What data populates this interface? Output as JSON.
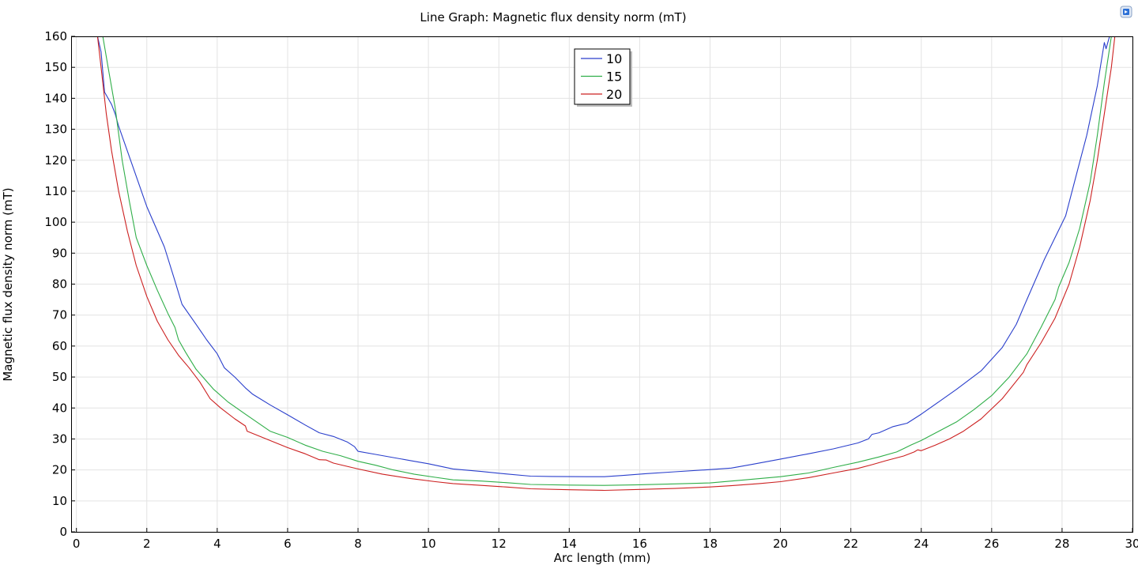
{
  "chart_data": {
    "type": "line",
    "title": "Line Graph: Magnetic flux density norm (mT)",
    "xlabel": "Arc length (mm)",
    "ylabel": "Magnetic flux density norm (mT)",
    "xlim": [
      -0.15,
      30.0
    ],
    "ylim": [
      0,
      160
    ],
    "xticks": [
      0,
      2,
      4,
      6,
      8,
      10,
      12,
      14,
      16,
      18,
      20,
      22,
      24,
      26,
      28,
      30
    ],
    "yticks": [
      0,
      10,
      20,
      30,
      40,
      50,
      60,
      70,
      80,
      90,
      100,
      110,
      120,
      130,
      140,
      150,
      160
    ],
    "grid": true,
    "legend_position": "top-center",
    "series": [
      {
        "name": "10",
        "color": "#2a3fcc",
        "points": [
          [
            0.6,
            160
          ],
          [
            0.7,
            155
          ],
          [
            0.8,
            142
          ],
          [
            1.0,
            138
          ],
          [
            1.1,
            135
          ],
          [
            1.2,
            131
          ],
          [
            1.6,
            118
          ],
          [
            2.0,
            105
          ],
          [
            2.5,
            92
          ],
          [
            2.8,
            81
          ],
          [
            3.0,
            73.5
          ],
          [
            3.4,
            67
          ],
          [
            3.7,
            62
          ],
          [
            4.0,
            57.5
          ],
          [
            4.2,
            53
          ],
          [
            4.5,
            50
          ],
          [
            4.8,
            46.5
          ],
          [
            5.0,
            44.5
          ],
          [
            5.5,
            41
          ],
          [
            6.0,
            37.8
          ],
          [
            6.5,
            34.5
          ],
          [
            6.9,
            32
          ],
          [
            7.3,
            30.8
          ],
          [
            7.7,
            29
          ],
          [
            7.9,
            27.5
          ],
          [
            8.0,
            26
          ],
          [
            8.5,
            25
          ],
          [
            9.0,
            24
          ],
          [
            9.5,
            23
          ],
          [
            10.0,
            22
          ],
          [
            10.7,
            20.3
          ],
          [
            11.5,
            19.5
          ],
          [
            12.2,
            18.7
          ],
          [
            12.9,
            18
          ],
          [
            13.5,
            17.9
          ],
          [
            14.5,
            17.8
          ],
          [
            15.0,
            17.8
          ],
          [
            15.5,
            18.2
          ],
          [
            16.2,
            18.8
          ],
          [
            17.0,
            19.4
          ],
          [
            18.0,
            20.1
          ],
          [
            18.6,
            20.6
          ],
          [
            19.2,
            21.8
          ],
          [
            20.0,
            23.5
          ],
          [
            20.8,
            25.2
          ],
          [
            21.5,
            26.8
          ],
          [
            22.2,
            28.7
          ],
          [
            22.5,
            30
          ],
          [
            22.6,
            31.5
          ],
          [
            22.8,
            32
          ],
          [
            23.2,
            34
          ],
          [
            23.6,
            35.1
          ],
          [
            24.0,
            38
          ],
          [
            24.5,
            42
          ],
          [
            25.0,
            46
          ],
          [
            25.7,
            52
          ],
          [
            26.3,
            59.5
          ],
          [
            26.7,
            67
          ],
          [
            27.0,
            75
          ],
          [
            27.5,
            88
          ],
          [
            28.1,
            102
          ],
          [
            28.4,
            115
          ],
          [
            28.7,
            128
          ],
          [
            29.0,
            144
          ],
          [
            29.2,
            158
          ],
          [
            29.25,
            156
          ],
          [
            29.35,
            160
          ]
        ]
      },
      {
        "name": "15",
        "color": "#2fae48",
        "points": [
          [
            0.75,
            160
          ],
          [
            0.9,
            150
          ],
          [
            1.1,
            137
          ],
          [
            1.3,
            120
          ],
          [
            1.5,
            107
          ],
          [
            1.7,
            95
          ],
          [
            2.0,
            86
          ],
          [
            2.3,
            78
          ],
          [
            2.6,
            70.5
          ],
          [
            2.8,
            66
          ],
          [
            2.9,
            62
          ],
          [
            3.1,
            58
          ],
          [
            3.4,
            52.5
          ],
          [
            3.9,
            46
          ],
          [
            4.3,
            42
          ],
          [
            4.8,
            38
          ],
          [
            5.5,
            32.5
          ],
          [
            6.0,
            30.5
          ],
          [
            6.5,
            28
          ],
          [
            7.0,
            26
          ],
          [
            7.5,
            24.6
          ],
          [
            8.0,
            22.8
          ],
          [
            8.5,
            21.5
          ],
          [
            9.0,
            20
          ],
          [
            9.6,
            18.6
          ],
          [
            10.2,
            17.6
          ],
          [
            10.7,
            16.8
          ],
          [
            11.5,
            16.4
          ],
          [
            12.2,
            15.9
          ],
          [
            12.9,
            15.3
          ],
          [
            14.0,
            15.1
          ],
          [
            15.0,
            15.0
          ],
          [
            16.0,
            15.2
          ],
          [
            17.0,
            15.5
          ],
          [
            18.0,
            15.8
          ],
          [
            19.0,
            16.8
          ],
          [
            20.0,
            17.8
          ],
          [
            20.8,
            19.0
          ],
          [
            21.5,
            20.8
          ],
          [
            22.2,
            22.5
          ],
          [
            22.8,
            24.2
          ],
          [
            23.3,
            25.8
          ],
          [
            23.7,
            28
          ],
          [
            24.0,
            29.5
          ],
          [
            24.5,
            32.5
          ],
          [
            25.0,
            35.5
          ],
          [
            25.5,
            39.5
          ],
          [
            26.0,
            44
          ],
          [
            26.5,
            50
          ],
          [
            27.0,
            57.5
          ],
          [
            27.4,
            66
          ],
          [
            27.8,
            75
          ],
          [
            27.9,
            79
          ],
          [
            28.2,
            87
          ],
          [
            28.5,
            98
          ],
          [
            28.8,
            113
          ],
          [
            29.0,
            128
          ],
          [
            29.2,
            145
          ],
          [
            29.4,
            160
          ]
        ]
      },
      {
        "name": "20",
        "color": "#cc2020",
        "points": [
          [
            0.6,
            160
          ],
          [
            0.7,
            150
          ],
          [
            0.85,
            135
          ],
          [
            1.0,
            123
          ],
          [
            1.2,
            110
          ],
          [
            1.45,
            97
          ],
          [
            1.7,
            86
          ],
          [
            2.0,
            76
          ],
          [
            2.3,
            68
          ],
          [
            2.6,
            62
          ],
          [
            2.9,
            57
          ],
          [
            3.2,
            53
          ],
          [
            3.5,
            48.5
          ],
          [
            3.8,
            43
          ],
          [
            4.1,
            40
          ],
          [
            4.5,
            36.5
          ],
          [
            4.8,
            34.2
          ],
          [
            4.85,
            32.5
          ],
          [
            5.5,
            29.5
          ],
          [
            6.0,
            27.2
          ],
          [
            6.5,
            25.2
          ],
          [
            6.9,
            23.3
          ],
          [
            7.1,
            23.2
          ],
          [
            7.3,
            22.2
          ],
          [
            8.0,
            20.3
          ],
          [
            8.7,
            18.6
          ],
          [
            9.5,
            17.2
          ],
          [
            10.2,
            16.2
          ],
          [
            10.7,
            15.6
          ],
          [
            11.5,
            15.0
          ],
          [
            12.2,
            14.5
          ],
          [
            12.9,
            13.9
          ],
          [
            14.0,
            13.6
          ],
          [
            15.0,
            13.4
          ],
          [
            16.0,
            13.7
          ],
          [
            17.0,
            14.0
          ],
          [
            18.0,
            14.5
          ],
          [
            18.6,
            14.9
          ],
          [
            19.4,
            15.6
          ],
          [
            20.0,
            16.2
          ],
          [
            20.8,
            17.5
          ],
          [
            21.5,
            19
          ],
          [
            22.2,
            20.5
          ],
          [
            22.6,
            21.7
          ],
          [
            23.0,
            23
          ],
          [
            23.5,
            24.5
          ],
          [
            23.8,
            25.8
          ],
          [
            23.9,
            26.5
          ],
          [
            24.0,
            26.2
          ],
          [
            24.4,
            28
          ],
          [
            24.8,
            30
          ],
          [
            25.2,
            32.5
          ],
          [
            25.7,
            36.5
          ],
          [
            26.3,
            43
          ],
          [
            26.9,
            51.5
          ],
          [
            27.0,
            54
          ],
          [
            27.4,
            61
          ],
          [
            27.8,
            69
          ],
          [
            28.2,
            80
          ],
          [
            28.5,
            92
          ],
          [
            28.8,
            107
          ],
          [
            29.0,
            120
          ],
          [
            29.2,
            135
          ],
          [
            29.4,
            150
          ],
          [
            29.5,
            160
          ]
        ]
      }
    ]
  },
  "app_icon": {
    "name": "window-restore-icon",
    "color": "#2b6fd6"
  }
}
